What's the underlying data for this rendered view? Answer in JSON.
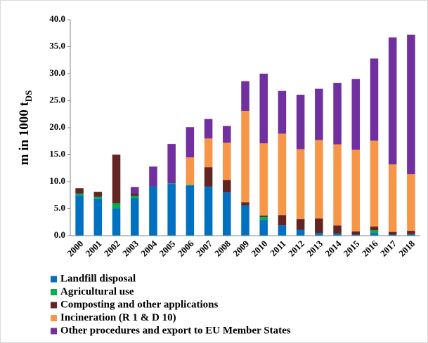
{
  "chart_data": {
    "type": "stacked_bar",
    "ylabel": "m in 1000 t",
    "ylabel_subscript": "DS",
    "categories": [
      "2000",
      "2001",
      "2002",
      "2003",
      "2004",
      "2005",
      "2006",
      "2007",
      "2008",
      "2009",
      "2010",
      "2011",
      "2012",
      "2013",
      "2014",
      "2015",
      "2016",
      "2017",
      "2018"
    ],
    "series": [
      {
        "name": "Landfill disposal",
        "color": "#0070c0",
        "values": [
          7.5,
          6.8,
          5.0,
          7.0,
          9.1,
          9.6,
          9.3,
          9.1,
          8.0,
          5.6,
          2.9,
          1.9,
          1.1,
          0.5,
          0.4,
          0.2,
          0.5,
          0.2,
          0.3
        ]
      },
      {
        "name": "Agricultural use",
        "color": "#00b050",
        "values": [
          0.3,
          0.4,
          1.0,
          0.4,
          0,
          0.1,
          0.1,
          0,
          0,
          0,
          0.6,
          0,
          0,
          0,
          0,
          0,
          0.5,
          0,
          0
        ]
      },
      {
        "name": "Composting and other applications",
        "color": "#632523",
        "values": [
          1.0,
          0.9,
          9.0,
          0.4,
          0,
          0,
          0,
          3.6,
          2.3,
          0.6,
          0.2,
          1.9,
          2.0,
          2.7,
          1.5,
          0.6,
          0.7,
          0.5,
          0.6
        ]
      },
      {
        "name": "Incineration (R 1 & D 10)",
        "color": "#f79646",
        "values": [
          0,
          0,
          0,
          0,
          0,
          0,
          5.1,
          5.3,
          6.9,
          16.9,
          13.4,
          15.1,
          12.9,
          14.5,
          15.0,
          15.1,
          15.9,
          12.5,
          10.5
        ]
      },
      {
        "name": "Other procedures and export to EU Member States",
        "color": "#7030a0",
        "values": [
          0,
          0,
          0,
          1.2,
          3.7,
          7.3,
          5.6,
          3.6,
          3.1,
          5.5,
          12.9,
          7.9,
          10.1,
          9.5,
          11.4,
          13.1,
          15.2,
          23.5,
          25.8
        ]
      }
    ],
    "ylim": [
      0,
      40
    ],
    "yticks": [
      {
        "value": 0,
        "label": "0.0"
      },
      {
        "value": 5,
        "label": "5.0"
      },
      {
        "value": 10,
        "label": "10.0"
      },
      {
        "value": 15,
        "label": "15.0"
      },
      {
        "value": 20,
        "label": "20.0"
      },
      {
        "value": 25,
        "label": "25.0"
      },
      {
        "value": 30,
        "label": "30.0"
      },
      {
        "value": 35,
        "label": "35.0"
      },
      {
        "value": 40,
        "label": "40.0"
      }
    ],
    "grid": false
  }
}
